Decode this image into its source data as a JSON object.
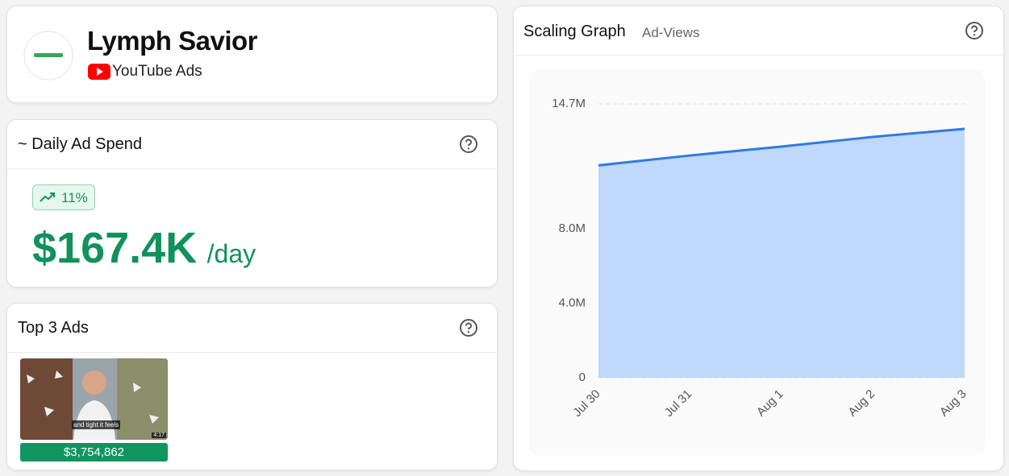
{
  "brand": {
    "name": "Lymph Savior",
    "platform": "YouTube Ads"
  },
  "daily_spend": {
    "title": "~ Daily Ad Spend",
    "change": "11%",
    "amount": "$167.4K",
    "unit": "/day"
  },
  "top_ads": {
    "title": "Top 3 Ads",
    "ads": [
      {
        "caption": "and tight it feels",
        "duration": "4:17",
        "spend": "$3,754,862"
      }
    ]
  },
  "chart_data": {
    "type": "area",
    "title": "Scaling Graph",
    "subtitle": "Ad-Views",
    "categories": [
      "Jul 30",
      "Jul 31",
      "Aug 1",
      "Aug 2",
      "Aug 3"
    ],
    "values": [
      11400000,
      11930000,
      12410000,
      12930000,
      13360000
    ],
    "color": "#2f7ae5",
    "fill": "#bfd8fb",
    "ylim": [
      0,
      14700000
    ],
    "yticks": [
      0,
      {
        "value": 4000000,
        "label": "4.0M"
      },
      {
        "value": 8000000,
        "label": "8.0M"
      },
      {
        "value": 14700000,
        "label": "14.7M"
      }
    ],
    "grid": true
  }
}
